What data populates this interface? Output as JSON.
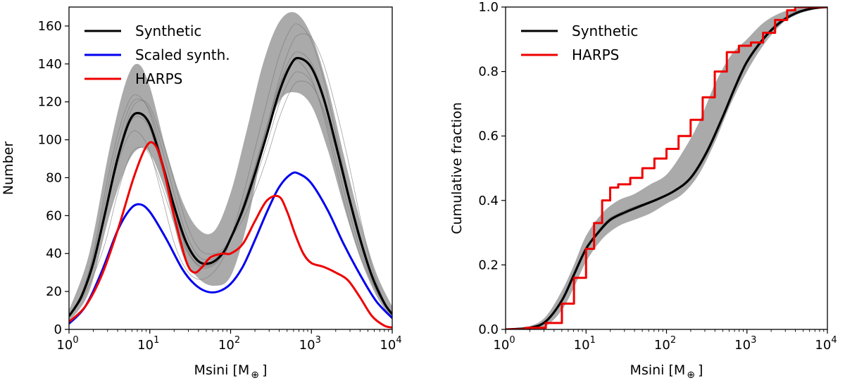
{
  "chart_data": [
    {
      "type": "line",
      "title": "",
      "xlabel": "Msini [M",
      "xlabel_sub": "⊕",
      "xlabel_close": "]",
      "ylabel": "Number",
      "xscale": "log",
      "xlim_exp": [
        0,
        4
      ],
      "ylim": [
        0,
        170
      ],
      "x_ticks_exp": [
        0,
        1,
        2,
        3,
        4
      ],
      "x_tick_base": "10",
      "x_tick_exps": [
        "0",
        "1",
        "2",
        "3",
        "4"
      ],
      "y_ticks": [
        0,
        20,
        40,
        60,
        80,
        100,
        120,
        140,
        160
      ],
      "y_tick_labels": [
        "0",
        "20",
        "40",
        "60",
        "80",
        "100",
        "120",
        "140",
        "160"
      ],
      "legend_position": "top-left",
      "legend": [
        "Synthetic",
        "Scaled synth.",
        "HARPS"
      ],
      "colors": {
        "synthetic": "#000000",
        "scaled": "#0000ee",
        "harps": "#ee0000",
        "band": "#aaaaaa",
        "realizations": "#777777"
      },
      "band": {
        "log_x": [
          0,
          0.25,
          0.5,
          0.7,
          0.85,
          1.0,
          1.2,
          1.4,
          1.6,
          1.8,
          2.0,
          2.2,
          2.4,
          2.6,
          2.8,
          3.0,
          3.2,
          3.4,
          3.6,
          3.8,
          4.0
        ],
        "upper": [
          10,
          40,
          95,
          130,
          140,
          128,
          95,
          68,
          53,
          52,
          72,
          105,
          140,
          162,
          167,
          155,
          128,
          92,
          58,
          30,
          12
        ],
        "lower": [
          4,
          20,
          60,
          85,
          95,
          93,
          72,
          40,
          27,
          23,
          28,
          55,
          95,
          120,
          125,
          118,
          95,
          65,
          38,
          18,
          5
        ]
      },
      "series": [
        {
          "name": "Synthetic",
          "log_x": [
            0,
            0.15,
            0.3,
            0.45,
            0.6,
            0.75,
            0.87,
            1.0,
            1.15,
            1.3,
            1.45,
            1.6,
            1.75,
            1.9,
            2.0,
            2.15,
            2.3,
            2.45,
            2.6,
            2.75,
            2.85,
            3.0,
            3.15,
            3.3,
            3.45,
            3.6,
            3.75,
            3.9,
            4.0
          ],
          "values": [
            7,
            17,
            35,
            62,
            90,
            110,
            114,
            108,
            88,
            65,
            46,
            36,
            35,
            40,
            48,
            63,
            82,
            103,
            125,
            140,
            143,
            138,
            122,
            98,
            72,
            48,
            28,
            14,
            8
          ]
        },
        {
          "name": "Scaled synth.",
          "log_x": [
            0,
            0.2,
            0.4,
            0.6,
            0.75,
            0.87,
            1.0,
            1.2,
            1.4,
            1.55,
            1.7,
            1.85,
            2.0,
            2.15,
            2.3,
            2.45,
            2.6,
            2.75,
            2.85,
            3.0,
            3.2,
            3.4,
            3.6,
            3.8,
            4.0
          ],
          "values": [
            3,
            12,
            30,
            52,
            63,
            66,
            62,
            48,
            32,
            24,
            20,
            20,
            24,
            33,
            47,
            62,
            75,
            82,
            82,
            77,
            63,
            45,
            29,
            15,
            6
          ]
        },
        {
          "name": "HARPS",
          "log_x": [
            0,
            0.2,
            0.4,
            0.6,
            0.8,
            0.95,
            1.05,
            1.15,
            1.3,
            1.45,
            1.55,
            1.65,
            1.75,
            1.9,
            2.0,
            2.15,
            2.3,
            2.45,
            2.6,
            2.7,
            2.8,
            2.9,
            3.0,
            3.15,
            3.3,
            3.45,
            3.6,
            3.75,
            3.9,
            4.0
          ],
          "values": [
            4,
            12,
            28,
            52,
            80,
            96,
            98,
            88,
            60,
            36,
            30,
            33,
            38,
            40,
            40,
            45,
            57,
            68,
            70,
            62,
            50,
            40,
            35,
            33,
            30,
            26,
            17,
            7,
            2,
            1
          ]
        }
      ],
      "realization_offsets": [
        [
          -25,
          20,
          8
        ],
        [
          15,
          -15,
          -9
        ],
        [
          -30,
          -20,
          4
        ],
        [
          10,
          25,
          -4
        ],
        [
          20,
          -5,
          12
        ],
        [
          -10,
          10,
          -12
        ]
      ]
    },
    {
      "type": "line",
      "title": "",
      "xlabel": "Msini [M",
      "xlabel_sub": "⊕",
      "xlabel_close": "]",
      "ylabel": "Cumulative fraction",
      "xscale": "log",
      "xlim_exp": [
        0,
        4
      ],
      "ylim": [
        0,
        1
      ],
      "x_ticks_exp": [
        0,
        1,
        2,
        3,
        4
      ],
      "x_tick_base": "10",
      "x_tick_exps": [
        "0",
        "1",
        "2",
        "3",
        "4"
      ],
      "y_ticks": [
        0,
        0.2,
        0.4,
        0.6,
        0.8,
        1.0
      ],
      "y_tick_labels": [
        "0.0",
        "0.2",
        "0.4",
        "0.6",
        "0.8",
        "1.0"
      ],
      "legend_position": "top-left",
      "legend": [
        "Synthetic",
        "HARPS"
      ],
      "colors": {
        "synthetic": "#000000",
        "harps": "#ee0000",
        "band": "#aaaaaa",
        "realizations": "#777777"
      },
      "band": {
        "log_x": [
          0,
          0.3,
          0.5,
          0.7,
          0.85,
          1.0,
          1.2,
          1.4,
          1.6,
          1.8,
          2.0,
          2.2,
          2.4,
          2.6,
          2.8,
          3.0,
          3.2,
          3.4,
          3.6,
          3.8,
          4.0
        ],
        "upper": [
          0.0,
          0.01,
          0.04,
          0.12,
          0.2,
          0.29,
          0.36,
          0.4,
          0.42,
          0.45,
          0.48,
          0.55,
          0.64,
          0.76,
          0.85,
          0.9,
          0.95,
          0.98,
          0.995,
          1.0,
          1.0
        ],
        "lower": [
          0.0,
          0.0,
          0.01,
          0.06,
          0.13,
          0.21,
          0.28,
          0.32,
          0.34,
          0.36,
          0.39,
          0.42,
          0.48,
          0.58,
          0.7,
          0.8,
          0.88,
          0.94,
          0.98,
          0.995,
          1.0
        ]
      },
      "series": [
        {
          "name": "Synthetic",
          "log_x": [
            0,
            0.3,
            0.5,
            0.7,
            0.85,
            1.0,
            1.15,
            1.3,
            1.5,
            1.7,
            1.9,
            2.1,
            2.3,
            2.5,
            2.7,
            2.85,
            3.0,
            3.2,
            3.4,
            3.6,
            3.8,
            4.0
          ],
          "values": [
            0.0,
            0.005,
            0.025,
            0.09,
            0.17,
            0.25,
            0.3,
            0.34,
            0.365,
            0.385,
            0.405,
            0.43,
            0.47,
            0.55,
            0.66,
            0.75,
            0.83,
            0.9,
            0.95,
            0.98,
            0.995,
            1.0
          ]
        },
        {
          "name": "HARPS",
          "log_x": [
            0,
            0.25,
            0.5,
            0.7,
            0.85,
            1.0,
            1.1,
            1.2,
            1.3,
            1.4,
            1.55,
            1.7,
            1.85,
            2.0,
            2.15,
            2.3,
            2.45,
            2.6,
            2.75,
            2.9,
            3.05,
            3.2,
            3.35,
            3.5,
            3.6,
            3.8,
            4.0
          ],
          "values": [
            0.0,
            0.005,
            0.02,
            0.08,
            0.16,
            0.25,
            0.33,
            0.4,
            0.44,
            0.45,
            0.47,
            0.5,
            0.53,
            0.56,
            0.6,
            0.65,
            0.72,
            0.8,
            0.86,
            0.88,
            0.89,
            0.92,
            0.96,
            0.99,
            1.0,
            1.0,
            1.0
          ]
        }
      ],
      "realization_offsets": [
        [
          0.02,
          -0.01,
          0.0
        ],
        [
          -0.02,
          0.015,
          -0.01
        ],
        [
          0.01,
          0.02,
          0.01
        ],
        [
          -0.015,
          -0.02,
          -0.005
        ]
      ]
    }
  ]
}
